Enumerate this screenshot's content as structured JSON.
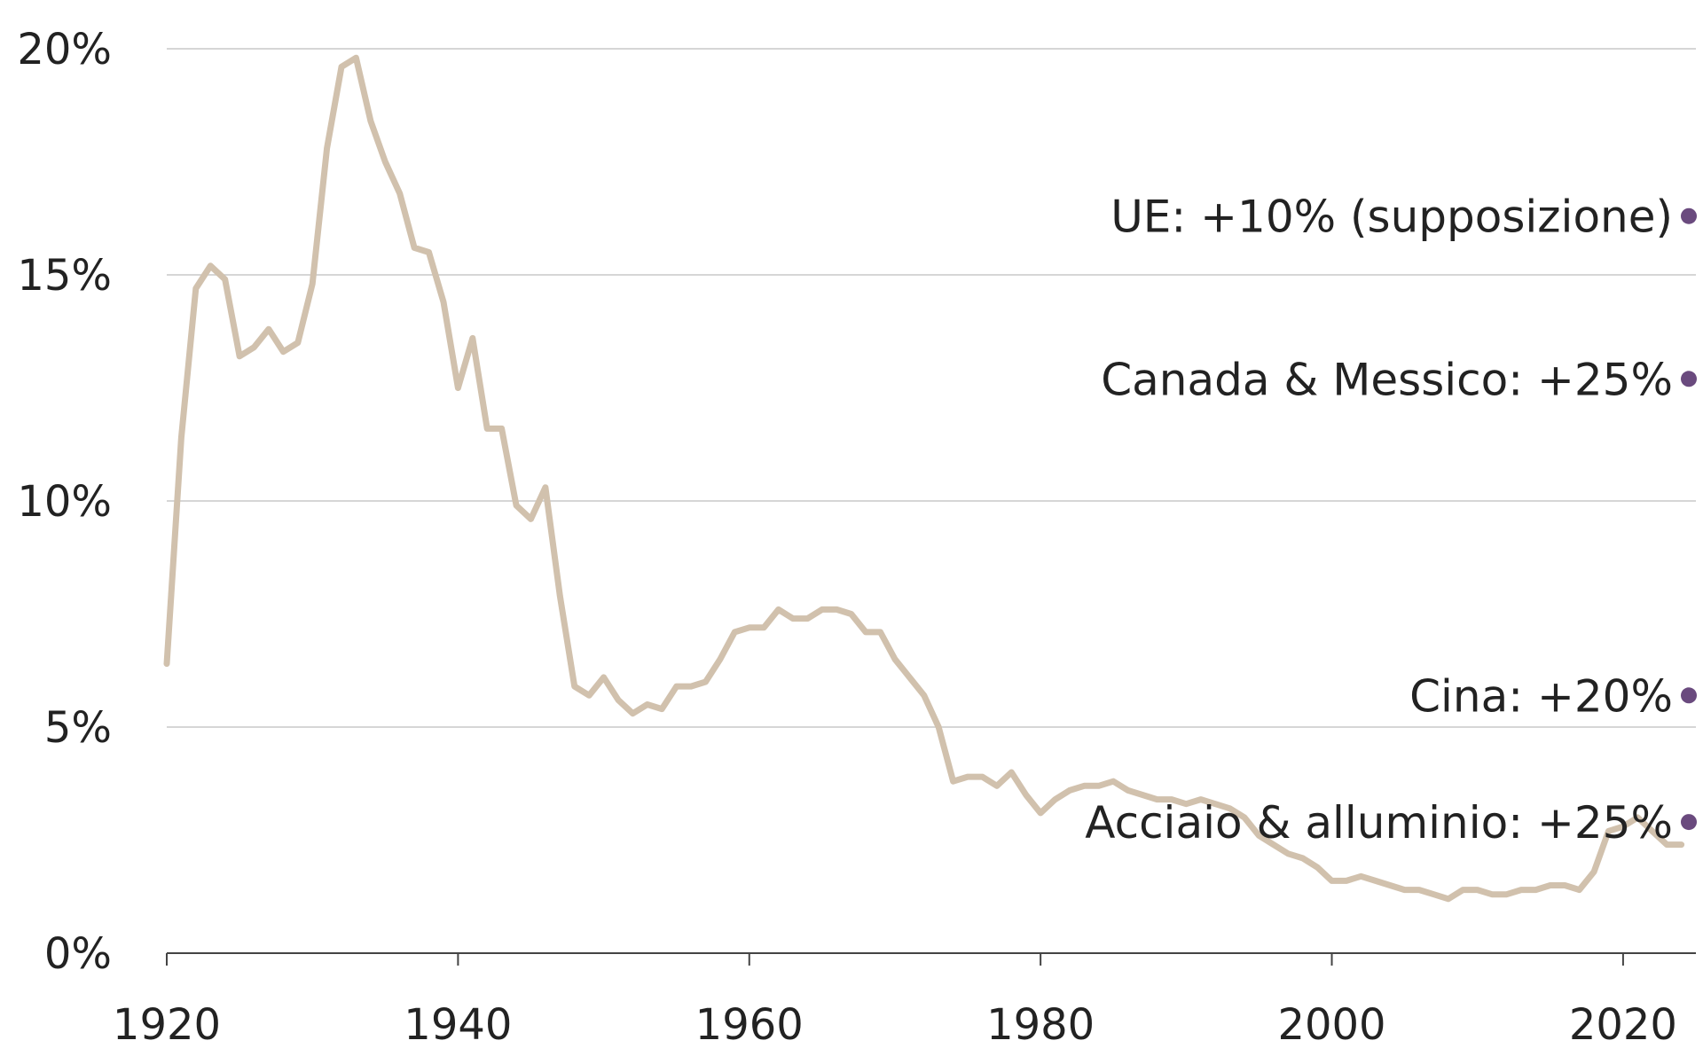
{
  "chart_data": {
    "type": "line",
    "title": "",
    "xlabel": "",
    "ylabel": "",
    "xlim": [
      1920,
      2025
    ],
    "ylim": [
      0,
      20
    ],
    "grid": "horizontal",
    "x_ticks": [
      1920,
      1940,
      1960,
      1980,
      2000,
      2020
    ],
    "x_tick_labels": [
      "1920",
      "1940",
      "1960",
      "1980",
      "2000",
      "2020"
    ],
    "y_ticks": [
      0,
      5,
      10,
      15,
      20
    ],
    "y_tick_labels": [
      "0%",
      "5%",
      "10%",
      "15%",
      "20%"
    ],
    "series": [
      {
        "color": "#d1c1ad",
        "x": [
          1920,
          1921,
          1922,
          1923,
          1924,
          1925,
          1926,
          1927,
          1928,
          1929,
          1930,
          1931,
          1932,
          1933,
          1934,
          1935,
          1936,
          1937,
          1938,
          1939,
          1940,
          1941,
          1942,
          1943,
          1944,
          1945,
          1946,
          1947,
          1948,
          1949,
          1950,
          1951,
          1952,
          1953,
          1954,
          1955,
          1956,
          1957,
          1958,
          1959,
          1960,
          1961,
          1962,
          1963,
          1964,
          1965,
          1966,
          1967,
          1968,
          1969,
          1970,
          1971,
          1972,
          1973,
          1974,
          1975,
          1976,
          1977,
          1978,
          1979,
          1980,
          1981,
          1982,
          1983,
          1984,
          1985,
          1986,
          1987,
          1988,
          1989,
          1990,
          1991,
          1992,
          1993,
          1994,
          1995,
          1996,
          1997,
          1998,
          1999,
          2000,
          2001,
          2002,
          2003,
          2004,
          2005,
          2006,
          2007,
          2008,
          2009,
          2010,
          2011,
          2012,
          2013,
          2014,
          2015,
          2016,
          2017,
          2018,
          2019,
          2020,
          2021,
          2022,
          2023,
          2024
        ],
        "y": [
          6.4,
          11.4,
          14.7,
          15.2,
          14.9,
          13.2,
          13.4,
          13.8,
          13.3,
          13.5,
          14.8,
          17.8,
          19.6,
          19.8,
          18.4,
          17.5,
          16.8,
          15.6,
          15.5,
          14.4,
          12.5,
          13.6,
          11.6,
          11.6,
          9.9,
          9.6,
          10.3,
          7.9,
          5.9,
          5.7,
          6.1,
          5.6,
          5.3,
          5.5,
          5.4,
          5.9,
          5.9,
          6.0,
          6.5,
          7.1,
          7.2,
          7.2,
          7.6,
          7.4,
          7.4,
          7.6,
          7.6,
          7.5,
          7.1,
          7.1,
          6.5,
          6.1,
          5.7,
          5.0,
          3.8,
          3.9,
          3.9,
          3.7,
          4.0,
          3.5,
          3.1,
          3.4,
          3.6,
          3.7,
          3.7,
          3.8,
          3.6,
          3.5,
          3.4,
          3.4,
          3.3,
          3.4,
          3.3,
          3.2,
          3.0,
          2.6,
          2.4,
          2.2,
          2.1,
          1.9,
          1.6,
          1.6,
          1.7,
          1.6,
          1.5,
          1.4,
          1.4,
          1.3,
          1.2,
          1.4,
          1.4,
          1.3,
          1.3,
          1.4,
          1.4,
          1.5,
          1.5,
          1.4,
          1.8,
          2.7,
          2.8,
          3.0,
          2.7,
          2.4,
          2.4
        ]
      }
    ],
    "annotations": [
      {
        "label": "UE: +10% (supposizione)",
        "x": 2025,
        "y": 16.3,
        "marker_color": "#6a4a7e"
      },
      {
        "label": "Canada & Messico: +25%",
        "x": 2025,
        "y": 12.7,
        "marker_color": "#6a4a7e"
      },
      {
        "label": "Cina: +20%",
        "x": 2025,
        "y": 5.7,
        "marker_color": "#6a4a7e"
      },
      {
        "label": "Acciaio & alluminio: +25%",
        "x": 2025,
        "y": 2.9,
        "marker_color": "#6a4a7e"
      }
    ]
  }
}
